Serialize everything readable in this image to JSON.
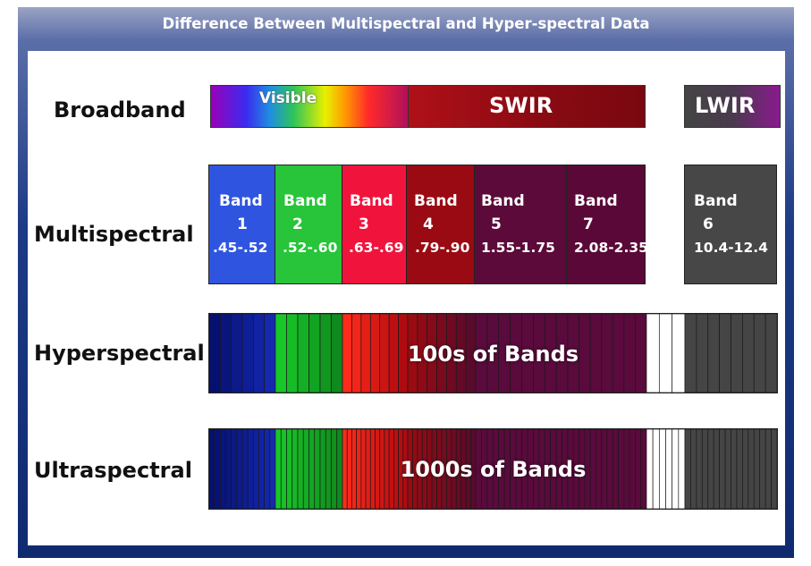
{
  "title": "Difference Between Multispectral and Hyper-spectral Data",
  "rows": {
    "broadband": "Broadband",
    "multispectral": "Multispectral",
    "hyperspectral": "Hyperspectral",
    "ultraspectral": "Ultraspectral"
  },
  "broadband": {
    "visible": "Visible",
    "swir": "SWIR",
    "lwir": "LWIR"
  },
  "multispectral_bands": [
    {
      "name": "Band",
      "num": "1",
      "range": ".45-.52",
      "color": "#2f55e0"
    },
    {
      "name": "Band",
      "num": "2",
      "range": ".52-.60",
      "color": "#28c43a"
    },
    {
      "name": "Band",
      "num": "3",
      "range": ".63-.69",
      "color": "#f0143c"
    },
    {
      "name": "Band",
      "num": "4",
      "range": ".79-.90",
      "color": "#9a0a12"
    },
    {
      "name": "Band",
      "num": "5",
      "range": "1.55-1.75",
      "color": "#5c0a3a"
    },
    {
      "name": "Band",
      "num": "7",
      "range": "2.08-2.35",
      "color": "#5a0838"
    },
    {
      "name": "Band",
      "num": "6",
      "range": "10.4-12.4",
      "color": "#474747"
    }
  ],
  "hyperspectral_label": "100s of Bands",
  "ultraspectral_label": "1000s of Bands",
  "colors": {
    "frame": "#1d3a86",
    "blue": "#0a1a8c",
    "green": "#1fa82a",
    "red": "#e8101e",
    "darkred": "#7a0a10",
    "purple": "#5a0a3c",
    "gray": "#454545"
  }
}
